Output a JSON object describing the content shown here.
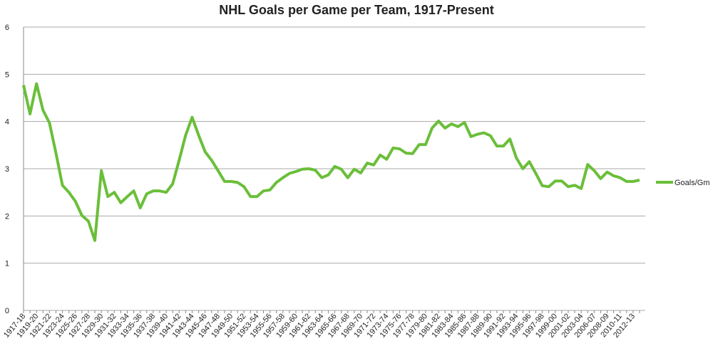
{
  "chart_data": {
    "type": "line",
    "title": "NHL Goals per Game per Team, 1917-Present",
    "categories": [
      "1917-18",
      null,
      "1919-20",
      null,
      "1921-22",
      null,
      "1923-24",
      null,
      "1925-26",
      null,
      "1927-28",
      null,
      "1929-30",
      null,
      "1931-32",
      null,
      "1933-34",
      null,
      "1935-36",
      null,
      "1937-38",
      null,
      "1939-40",
      null,
      "1941-42",
      null,
      "1943-44",
      null,
      "1945-46",
      null,
      "1947-48",
      null,
      "1949-50",
      null,
      "1951-52",
      null,
      "1953-54",
      null,
      "1955-56",
      null,
      "1957-58",
      null,
      "1959-60",
      null,
      "1961-62",
      null,
      "1963-64",
      null,
      "1965-66",
      null,
      "1967-68",
      null,
      "1969-70",
      null,
      "1971-72",
      null,
      "1973-74",
      null,
      "1975-76",
      null,
      "1977-78",
      null,
      "1979-80",
      null,
      "1981-82",
      null,
      "1983-84",
      null,
      "1985-86",
      null,
      "1987-88",
      null,
      "1989-90",
      null,
      "1991-92",
      null,
      "1993-94",
      null,
      "1995-96",
      null,
      "1997-98",
      null,
      "1999-00",
      null,
      "2001-02",
      null,
      "2003-04",
      null,
      "2006-07",
      null,
      "2008-09",
      null,
      "2010-11",
      null,
      "2012-13",
      null
    ],
    "series": [
      {
        "name": "Goals/Gm",
        "color": "#6abf3a",
        "values": [
          4.77,
          4.16,
          4.8,
          4.24,
          3.97,
          3.33,
          2.65,
          2.5,
          2.31,
          2.01,
          1.89,
          1.48,
          2.96,
          2.41,
          2.5,
          2.28,
          2.41,
          2.53,
          2.17,
          2.47,
          2.53,
          2.53,
          2.5,
          2.68,
          3.18,
          3.71,
          4.09,
          3.71,
          3.36,
          3.18,
          2.96,
          2.73,
          2.73,
          2.71,
          2.62,
          2.41,
          2.41,
          2.53,
          2.55,
          2.71,
          2.81,
          2.9,
          2.94,
          2.99,
          3.0,
          2.97,
          2.81,
          2.87,
          3.05,
          2.99,
          2.81,
          2.99,
          2.91,
          3.12,
          3.08,
          3.29,
          3.2,
          3.44,
          3.42,
          3.33,
          3.32,
          3.51,
          3.51,
          3.86,
          4.01,
          3.86,
          3.95,
          3.89,
          3.98,
          3.68,
          3.73,
          3.76,
          3.7,
          3.48,
          3.48,
          3.63,
          3.23,
          3.0,
          3.15,
          2.9,
          2.64,
          2.62,
          2.74,
          2.74,
          2.62,
          2.65,
          2.58,
          3.09,
          2.96,
          2.79,
          2.93,
          2.85,
          2.81,
          2.73,
          2.73,
          2.76
        ]
      }
    ],
    "ylim": [
      0,
      6
    ],
    "yticks": [
      0,
      1,
      2,
      3,
      4,
      5,
      6
    ],
    "grid": true,
    "legend": "right"
  }
}
